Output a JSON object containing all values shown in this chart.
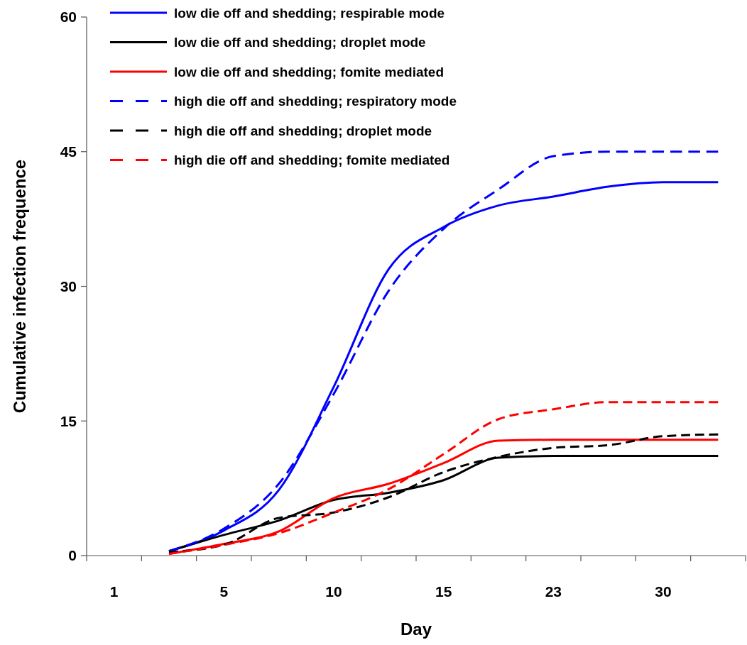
{
  "chart_data": {
    "type": "line",
    "xlabel": "Day",
    "ylabel": "Cumulative infection frequence",
    "categories": [
      "1",
      null,
      "5",
      null,
      "10",
      null,
      "15",
      null,
      "23",
      null,
      "30",
      null
    ],
    "ylim": [
      0,
      60
    ],
    "yticks": [
      0,
      15,
      30,
      45,
      60
    ],
    "grid": false,
    "legend": "top",
    "marker": "none",
    "series": [
      {
        "name": "low die off and shedding; respirable mode",
        "color": "#0000ff",
        "line_style": "solid",
        "values": [
          null,
          0.5,
          2.8,
          7.3,
          18.8,
          31.9,
          36.6,
          39.0,
          40.0,
          41.1,
          41.6,
          41.6
        ]
      },
      {
        "name": "low die off and shedding; droplet mode",
        "color": "#000000",
        "line_style": "solid",
        "values": [
          null,
          0.5,
          2.3,
          3.9,
          6.2,
          7.0,
          8.4,
          10.9,
          11.1,
          11.1,
          11.1,
          11.1
        ]
      },
      {
        "name": "low die off and shedding; fomite mediated",
        "color": "#ff0000",
        "line_style": "solid",
        "values": [
          null,
          0.2,
          1.3,
          2.7,
          6.4,
          8.0,
          10.3,
          12.8,
          12.9,
          12.9,
          12.9,
          12.9
        ]
      },
      {
        "name": "high die off and shedding; respiratory mode",
        "color": "#0000ff",
        "line_style": "dashed",
        "values": [
          null,
          0.5,
          3.0,
          8.0,
          18.0,
          29.5,
          36.4,
          40.8,
          44.5,
          45.0,
          45.0,
          45.0
        ]
      },
      {
        "name": "high die off and shedding; droplet mode",
        "color": "#000000",
        "line_style": "dashed",
        "values": [
          null,
          0.4,
          1.2,
          4.2,
          4.8,
          6.5,
          9.3,
          11.0,
          12.0,
          12.3,
          13.3,
          13.5
        ]
      },
      {
        "name": "high die off and shedding; fomite mediated",
        "color": "#ff0000",
        "line_style": "dashed",
        "values": [
          null,
          0.2,
          1.2,
          2.5,
          4.8,
          7.4,
          11.3,
          15.2,
          16.3,
          17.1,
          17.1,
          17.1
        ]
      }
    ]
  }
}
